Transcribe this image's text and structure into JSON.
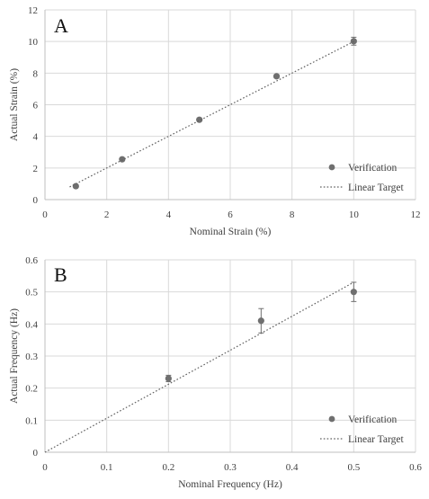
{
  "chart_data": [
    {
      "type": "scatter",
      "panel_label": "A",
      "xlabel": "Nominal Strain (%)",
      "ylabel": "Actual Strain (%)",
      "xlim": [
        0,
        12
      ],
      "ylim": [
        0,
        12
      ],
      "x_ticks": [
        "0",
        "2",
        "4",
        "6",
        "8",
        "10",
        "12"
      ],
      "y_ticks": [
        "0",
        "2",
        "4",
        "6",
        "8",
        "10",
        "12"
      ],
      "grid": true,
      "legend_position": "bottom-right",
      "series": [
        {
          "name": "Verification",
          "kind": "points",
          "color": "#6f6f6f",
          "x": [
            1,
            2.5,
            5,
            7.5,
            10
          ],
          "y": [
            0.85,
            2.55,
            5.05,
            7.8,
            10.02
          ],
          "error": [
            0.05,
            0.05,
            0.05,
            0.1,
            0.25
          ]
        },
        {
          "name": "Linear Target",
          "kind": "dotted-line",
          "color": "#606060",
          "x": [
            0.8,
            10
          ],
          "y": [
            0.8,
            10
          ]
        }
      ]
    },
    {
      "type": "scatter",
      "panel_label": "B",
      "xlabel": "Nominal Frequency (Hz)",
      "ylabel": "Actual Frequency (Hz)",
      "xlim": [
        0,
        0.6
      ],
      "ylim": [
        0,
        0.6
      ],
      "x_ticks": [
        "0",
        "0.1",
        "0.2",
        "0.3",
        "0.4",
        "0.5",
        "0.6"
      ],
      "y_ticks": [
        "0",
        "0.1",
        "0.2",
        "0.3",
        "0.4",
        "0.5",
        "0.6"
      ],
      "grid": true,
      "legend_position": "bottom-right",
      "series": [
        {
          "name": "Verification",
          "kind": "points",
          "color": "#6f6f6f",
          "x": [
            0.2,
            0.35,
            0.5
          ],
          "y": [
            0.23,
            0.41,
            0.5
          ],
          "error": [
            0.01,
            0.038,
            0.03
          ]
        },
        {
          "name": "Linear Target",
          "kind": "dotted-line",
          "color": "#606060",
          "x": [
            0,
            0.5
          ],
          "y": [
            0,
            0.53
          ]
        }
      ]
    }
  ]
}
